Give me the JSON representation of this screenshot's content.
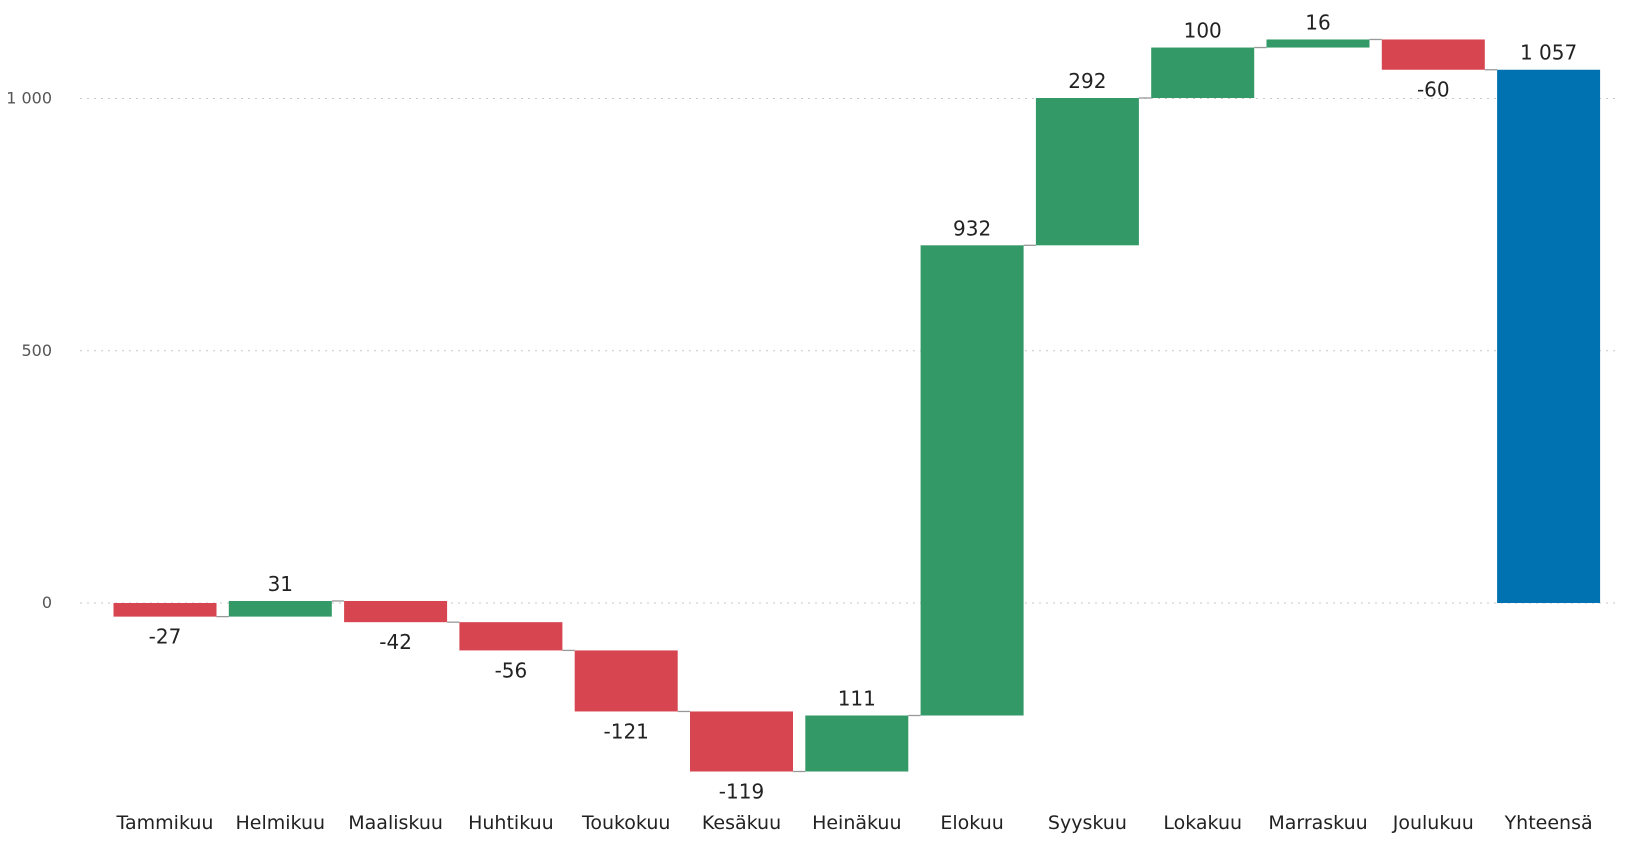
{
  "chart_data": {
    "type": "waterfall",
    "title": "",
    "xlabel": "",
    "ylabel": "",
    "categories": [
      "Tammikuu",
      "Helmikuu",
      "Maaliskuu",
      "Huhtikuu",
      "Toukokuu",
      "Kesäkuu",
      "Heinäkuu",
      "Elokuu",
      "Syyskuu",
      "Lokakuu",
      "Marraskuu",
      "Joulukuu"
    ],
    "values": [
      -27,
      31,
      -42,
      -56,
      -121,
      -119,
      111,
      932,
      292,
      100,
      16,
      -60
    ],
    "value_labels": [
      "-27",
      "31",
      "-42",
      "-56",
      "-121",
      "-119",
      "111",
      "932",
      "292",
      "100",
      "16",
      "-60"
    ],
    "total": {
      "label": "Yhteensä",
      "value": 1057,
      "value_label": "1 057"
    },
    "yticks": [
      {
        "value": 0,
        "label": "0"
      },
      {
        "value": 500,
        "label": "500"
      },
      {
        "value": 1000,
        "label": "1 000"
      }
    ],
    "ylim": [
      -330,
      1150
    ],
    "grid": true,
    "legend": "none",
    "colors": {
      "increase": "#339966",
      "decrease": "#d64550",
      "total": "#0072b2",
      "connector": "#999999",
      "grid": "#c8c8c8"
    }
  }
}
